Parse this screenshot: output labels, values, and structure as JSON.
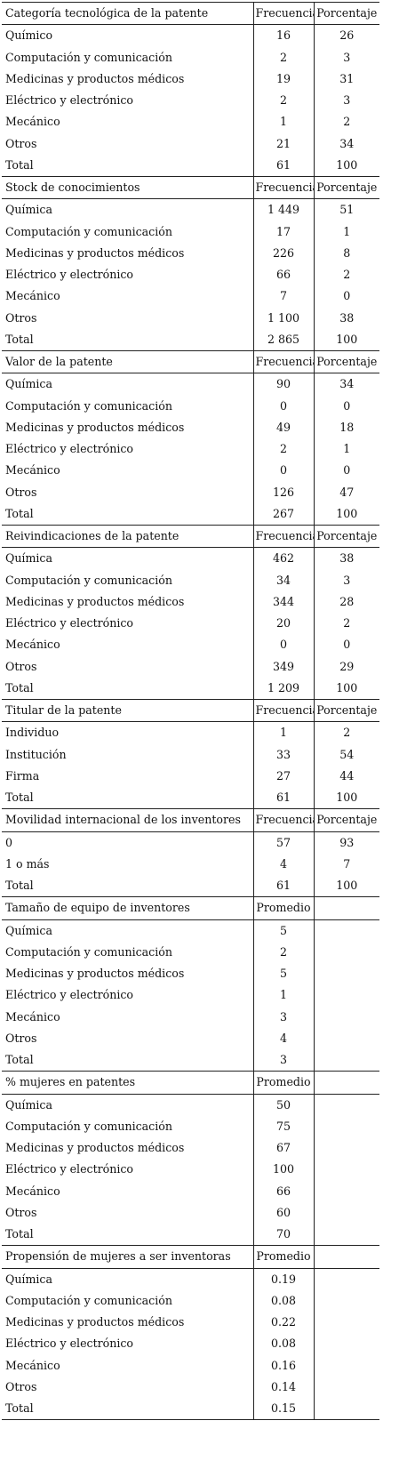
{
  "sections": [
    {
      "title": "Categoría tecnológica de la patente",
      "col2": "Frecuencia",
      "col3": "Porcentaje",
      "rows": [
        {
          "label": "Químico",
          "v1": "16",
          "v2": "26"
        },
        {
          "label": "Computación y comunicación",
          "v1": "2",
          "v2": "3"
        },
        {
          "label": "Medicinas y productos médicos",
          "v1": "19",
          "v2": "31"
        },
        {
          "label": "Eléctrico y electrónico",
          "v1": "2",
          "v2": "3"
        },
        {
          "label": "Mecánico",
          "v1": "1",
          "v2": "2"
        },
        {
          "label": "Otros",
          "v1": "21",
          "v2": "34"
        },
        {
          "label": "Total",
          "v1": "61",
          "v2": "100"
        }
      ]
    },
    {
      "title": "Stock de conocimientos",
      "col2": "Frecuencia",
      "col3": "Porcentaje",
      "rows": [
        {
          "label": "Química",
          "v1": "1 449",
          "v2": "51"
        },
        {
          "label": "Computación y comunicación",
          "v1": "17",
          "v2": "1"
        },
        {
          "label": "Medicinas y productos médicos",
          "v1": "226",
          "v2": "8"
        },
        {
          "label": "Eléctrico y electrónico",
          "v1": "66",
          "v2": "2"
        },
        {
          "label": "Mecánico",
          "v1": "7",
          "v2": "0"
        },
        {
          "label": "Otros",
          "v1": "1 100",
          "v2": "38"
        },
        {
          "label": "Total",
          "v1": "2 865",
          "v2": "100"
        }
      ]
    },
    {
      "title": "Valor de la patente",
      "col2": "Frecuencia",
      "col3": "Porcentaje",
      "rows": [
        {
          "label": "Química",
          "v1": "90",
          "v2": "34"
        },
        {
          "label": "Computación y comunicación",
          "v1": "0",
          "v2": "0"
        },
        {
          "label": "Medicinas y productos médicos",
          "v1": "49",
          "v2": "18"
        },
        {
          "label": "Eléctrico y electrónico",
          "v1": "2",
          "v2": "1"
        },
        {
          "label": "Mecánico",
          "v1": "0",
          "v2": "0"
        },
        {
          "label": "Otros",
          "v1": "126",
          "v2": "47"
        },
        {
          "label": "Total",
          "v1": "267",
          "v2": "100"
        }
      ]
    },
    {
      "title": "Reivindicaciones de la patente",
      "col2": "Frecuencia",
      "col3": "Porcentaje",
      "rows": [
        {
          "label": "Química",
          "v1": "462",
          "v2": "38"
        },
        {
          "label": "Computación y comunicación",
          "v1": "34",
          "v2": "3"
        },
        {
          "label": "Medicinas y productos médicos",
          "v1": "344",
          "v2": "28"
        },
        {
          "label": "Eléctrico y electrónico",
          "v1": "20",
          "v2": "2"
        },
        {
          "label": "Mecánico",
          "v1": "0",
          "v2": "0"
        },
        {
          "label": "Otros",
          "v1": "349",
          "v2": "29"
        },
        {
          "label": "Total",
          "v1": "1 209",
          "v2": "100"
        }
      ]
    },
    {
      "title": "Titular de la patente",
      "col2": "Frecuencia",
      "col3": "Porcentaje",
      "rows": [
        {
          "label": "Individuo",
          "v1": "1",
          "v2": "2"
        },
        {
          "label": "Institución",
          "v1": "33",
          "v2": "54"
        },
        {
          "label": "Firma",
          "v1": "27",
          "v2": "44"
        },
        {
          "label": "Total",
          "v1": "61",
          "v2": "100"
        }
      ]
    },
    {
      "title": "Movilidad internacional de los inventores",
      "col2": "Frecuencia",
      "col3": "Porcentaje",
      "rows": [
        {
          "label": "0",
          "v1": "57",
          "v2": "93"
        },
        {
          "label": "1 o más",
          "v1": "4",
          "v2": "7"
        },
        {
          "label": "Total",
          "v1": "61",
          "v2": "100"
        }
      ]
    },
    {
      "title": "Tamaño de equipo de inventores",
      "col2": "Promedio",
      "col3": "",
      "rows": [
        {
          "label": "Química",
          "v1": "5",
          "v2": ""
        },
        {
          "label": "Computación y comunicación",
          "v1": "2",
          "v2": ""
        },
        {
          "label": "Medicinas y productos médicos",
          "v1": "5",
          "v2": ""
        },
        {
          "label": "Eléctrico y electrónico",
          "v1": "1",
          "v2": ""
        },
        {
          "label": "Mecánico",
          "v1": "3",
          "v2": ""
        },
        {
          "label": "Otros",
          "v1": "4",
          "v2": ""
        },
        {
          "label": "Total",
          "v1": "3",
          "v2": ""
        }
      ]
    },
    {
      "title": "% mujeres en patentes",
      "col2": "Promedio",
      "col3": "",
      "rows": [
        {
          "label": "Química",
          "v1": "50",
          "v2": ""
        },
        {
          "label": "Computación y comunicación",
          "v1": "75",
          "v2": ""
        },
        {
          "label": "Medicinas y productos médicos",
          "v1": "67",
          "v2": ""
        },
        {
          "label": "Eléctrico y electrónico",
          "v1": "100",
          "v2": ""
        },
        {
          "label": "Mecánico",
          "v1": "66",
          "v2": ""
        },
        {
          "label": "Otros",
          "v1": "60",
          "v2": ""
        },
        {
          "label": "Total",
          "v1": "70",
          "v2": ""
        }
      ]
    },
    {
      "title": "Propensión de mujeres a ser inventoras",
      "col2": "Promedio",
      "col3": "",
      "rows": [
        {
          "label": "Química",
          "v1": "0.19",
          "v2": ""
        },
        {
          "label": "Computación y comunicación",
          "v1": "0.08",
          "v2": ""
        },
        {
          "label": "Medicinas y productos médicos",
          "v1": "0.22",
          "v2": ""
        },
        {
          "label": "Eléctrico y electrónico",
          "v1": "0.08",
          "v2": ""
        },
        {
          "label": "Mecánico",
          "v1": "0.16",
          "v2": ""
        },
        {
          "label": "Otros",
          "v1": "0.14",
          "v2": ""
        },
        {
          "label": "Total",
          "v1": "0.15",
          "v2": ""
        }
      ]
    }
  ]
}
